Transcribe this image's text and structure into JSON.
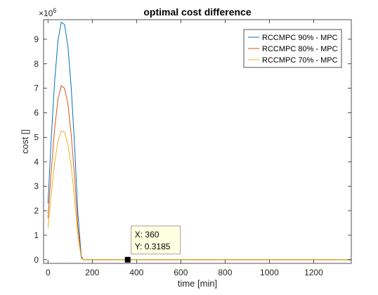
{
  "chart_data": {
    "type": "line",
    "title": "optimal cost difference",
    "xlabel": "time [min]",
    "ylabel": "cost []",
    "exponent_label": "×10",
    "exponent_power": "6",
    "xlim": [
      -20,
      1370
    ],
    "ylim": [
      -0.15,
      9.8
    ],
    "xticks": [
      0,
      200,
      400,
      600,
      800,
      1000,
      1200
    ],
    "xtick_labels": [
      "0",
      "200",
      "400",
      "600",
      "800",
      "1000",
      "1200"
    ],
    "yticks": [
      0,
      1,
      2,
      3,
      4,
      5,
      6,
      7,
      8,
      9
    ],
    "ytick_labels": [
      "0",
      "1",
      "2",
      "3",
      "4",
      "5",
      "6",
      "7",
      "8",
      "9"
    ],
    "grid": false,
    "legend_position": "top-right",
    "x": [
      0,
      15,
      30,
      45,
      60,
      75,
      90,
      105,
      120,
      135,
      150,
      160,
      170,
      185,
      200,
      250,
      300,
      400,
      600,
      800,
      1000,
      1200,
      1370
    ],
    "series": [
      {
        "name": "RCCMPC 90% - MPC",
        "color": "#0072BD",
        "values": [
          2.3,
          5.0,
          7.3,
          8.95,
          9.7,
          9.6,
          8.7,
          7.0,
          4.7,
          1.9,
          0.15,
          0.0,
          0.0,
          0.0,
          0.0,
          0.0,
          0.0,
          0.0,
          0.0,
          0.0,
          0.0,
          0.0,
          0.0
        ]
      },
      {
        "name": "RCCMPC 80% - MPC",
        "color": "#D95319",
        "values": [
          1.7,
          3.65,
          5.35,
          6.55,
          7.1,
          7.0,
          6.35,
          5.1,
          3.4,
          1.35,
          0.1,
          0.0,
          0.0,
          0.0,
          0.0,
          0.0,
          0.0,
          0.0,
          0.0,
          0.0,
          0.0,
          0.0,
          0.0
        ]
      },
      {
        "name": "RCCMPC 70% - MPC",
        "color": "#EDB120",
        "values": [
          1.3,
          2.7,
          3.95,
          4.85,
          5.25,
          5.2,
          4.7,
          3.8,
          2.5,
          1.0,
          0.07,
          0.0,
          0.0,
          0.0,
          0.0,
          0.0,
          0.0,
          0.0,
          0.0,
          0.0,
          0.0,
          0.0,
          0.0
        ]
      }
    ],
    "datatip": {
      "x": 360,
      "y": 0.3185,
      "x_text": "X: 360",
      "y_text": "Y: 0.3185"
    }
  }
}
